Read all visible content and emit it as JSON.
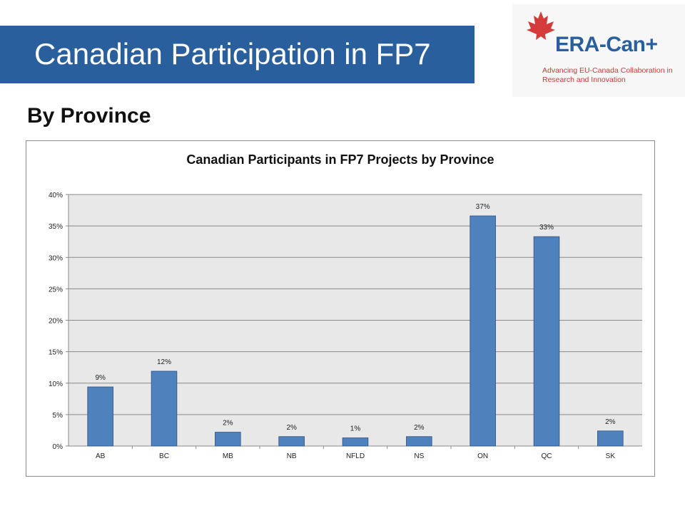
{
  "slide": {
    "title": "Canadian Participation in FP7",
    "subtitle": "By Province"
  },
  "logo": {
    "name": "ERA-Can+",
    "tagline": "Advancing EU-Canada Collaboration in Research and Innovation",
    "icon": "maple-leaf-icon",
    "colors": {
      "brand_blue": "#2a5f9e",
      "brand_red": "#d43b3b"
    }
  },
  "colors": {
    "title_bar": "#2a5f9e",
    "bar_fill": "#4f81bd",
    "bar_stroke": "#2c5282",
    "plot_background": "#e8e8e8"
  },
  "chart_data": {
    "type": "bar",
    "title": "Canadian Participants in FP7 Projects by Province",
    "xlabel": "",
    "ylabel": "",
    "categories": [
      "AB",
      "BC",
      "MB",
      "NB",
      "NFLD",
      "NS",
      "ON",
      "QC",
      "SK"
    ],
    "values": [
      9.4,
      11.9,
      2.2,
      1.5,
      1.3,
      1.5,
      36.6,
      33.3,
      2.4
    ],
    "data_labels": [
      "9%",
      "12%",
      "2%",
      "2%",
      "1%",
      "2%",
      "37%",
      "33%",
      "2%"
    ],
    "ylim": [
      0,
      40
    ],
    "yticks": [
      0,
      5,
      10,
      15,
      20,
      25,
      30,
      35,
      40
    ],
    "ytick_labels": [
      "0%",
      "5%",
      "10%",
      "15%",
      "20%",
      "25%",
      "30%",
      "35%",
      "40%"
    ],
    "grid": true,
    "legend": "none"
  }
}
